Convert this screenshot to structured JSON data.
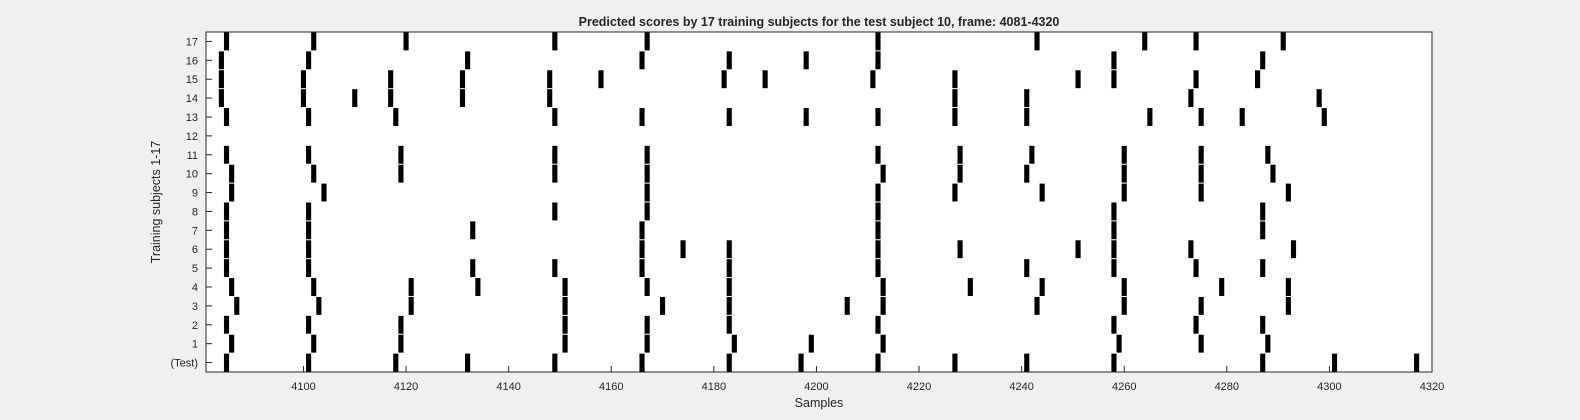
{
  "chart_data": {
    "type": "heatmap",
    "title": "Predicted scores by 17 training subjects for the test subject 10, frame: 4081-4320",
    "xlabel": "Samples",
    "ylabel": "Training subjects 1-17",
    "xlim": [
      4081,
      4320
    ],
    "x_ticks": [
      4100,
      4120,
      4140,
      4160,
      4180,
      4200,
      4220,
      4240,
      4260,
      4280,
      4300,
      4320
    ],
    "y_tick_labels": [
      "(Test)",
      "1",
      "2",
      "3",
      "4",
      "5",
      "6",
      "7",
      "8",
      "9",
      "10",
      "11",
      "12",
      "13",
      "14",
      "15",
      "16",
      "17"
    ],
    "grid": false,
    "colors": {
      "background": "#ffffff",
      "mark": "#000000",
      "axis": "#262626",
      "figure": "#f0f0f0"
    },
    "rows": [
      {
        "label": "(Test)",
        "marks": [
          4085,
          4101,
          4118,
          4132,
          4149,
          4166,
          4183,
          4197,
          4212,
          4227,
          4241,
          4258,
          4287,
          4301,
          4317
        ]
      },
      {
        "label": "1",
        "marks": [
          4086,
          4102,
          4119,
          4151,
          4167,
          4184,
          4199,
          4213,
          4259,
          4275,
          4288
        ]
      },
      {
        "label": "2",
        "marks": [
          4085,
          4101,
          4119,
          4151,
          4167,
          4183,
          4212,
          4258,
          4274,
          4287
        ]
      },
      {
        "label": "3",
        "marks": [
          4087,
          4103,
          4121,
          4151,
          4170,
          4183,
          4206,
          4213,
          4243,
          4260,
          4275,
          4292
        ]
      },
      {
        "label": "4",
        "marks": [
          4086,
          4102,
          4121,
          4134,
          4151,
          4167,
          4183,
          4213,
          4230,
          4244,
          4260,
          4279,
          4292
        ]
      },
      {
        "label": "5",
        "marks": [
          4085,
          4101,
          4133,
          4149,
          4166,
          4183,
          4212,
          4241,
          4258,
          4274,
          4287
        ]
      },
      {
        "label": "6",
        "marks": [
          4085,
          4101,
          4166,
          4174,
          4183,
          4212,
          4228,
          4251,
          4258,
          4273,
          4293
        ]
      },
      {
        "label": "7",
        "marks": [
          4085,
          4101,
          4133,
          4166,
          4212,
          4258,
          4287
        ]
      },
      {
        "label": "8",
        "marks": [
          4085,
          4101,
          4149,
          4167,
          4212,
          4258,
          4287
        ]
      },
      {
        "label": "9",
        "marks": [
          4086,
          4104,
          4167,
          4212,
          4227,
          4244,
          4260,
          4275,
          4292
        ]
      },
      {
        "label": "10",
        "marks": [
          4086,
          4102,
          4119,
          4149,
          4167,
          4213,
          4228,
          4241,
          4260,
          4275,
          4289
        ]
      },
      {
        "label": "11",
        "marks": [
          4085,
          4101,
          4119,
          4149,
          4167,
          4212,
          4228,
          4242,
          4260,
          4275,
          4288
        ]
      },
      {
        "label": "12",
        "marks": []
      },
      {
        "label": "13",
        "marks": [
          4085,
          4101,
          4118,
          4149,
          4166,
          4183,
          4198,
          4212,
          4227,
          4241,
          4265,
          4275,
          4283,
          4299
        ]
      },
      {
        "label": "14",
        "marks": [
          4084,
          4100,
          4110,
          4117,
          4131,
          4148,
          4227,
          4241,
          4273,
          4298
        ]
      },
      {
        "label": "15",
        "marks": [
          4084,
          4100,
          4117,
          4131,
          4148,
          4158,
          4182,
          4190,
          4211,
          4227,
          4251,
          4258,
          4274,
          4286
        ]
      },
      {
        "label": "16",
        "marks": [
          4084,
          4101,
          4132,
          4166,
          4183,
          4198,
          4212,
          4258,
          4287
        ]
      },
      {
        "label": "17",
        "marks": [
          4085,
          4102,
          4120,
          4149,
          4167,
          4212,
          4243,
          4264,
          4274,
          4291
        ]
      }
    ]
  }
}
